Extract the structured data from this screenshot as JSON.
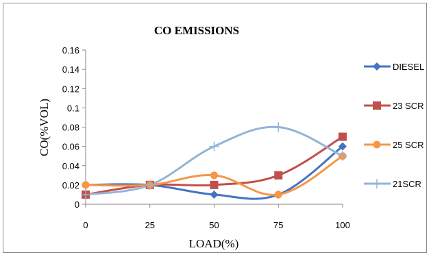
{
  "chart_data": {
    "type": "line",
    "title": "CO EMISSIONS",
    "xlabel": "LOAD(%)",
    "ylabel": "CO(%VOL)",
    "categories": [
      "0",
      "25",
      "50",
      "75",
      "100"
    ],
    "x": [
      0,
      25,
      50,
      75,
      100
    ],
    "ylim": [
      0,
      0.16
    ],
    "yticks": [
      "0",
      "0.02",
      "0.04",
      "0.06",
      "0.08",
      "0.1",
      "0.12",
      "0.14",
      "0.16"
    ],
    "grid": false,
    "legend_position": "right",
    "series": [
      {
        "name": "DIESEL",
        "values": [
          0.02,
          0.02,
          0.01,
          0.01,
          0.06
        ],
        "color": "#4472C4",
        "marker": "diamond"
      },
      {
        "name": "23 SCR",
        "values": [
          0.01,
          0.02,
          0.02,
          0.03,
          0.07
        ],
        "color": "#C0504D",
        "marker": "square"
      },
      {
        "name": "25 SCR",
        "values": [
          0.02,
          0.02,
          0.03,
          0.01,
          0.05
        ],
        "color": "#F79646",
        "marker": "circle"
      },
      {
        "name": "21SCR",
        "values": [
          0.01,
          0.02,
          0.06,
          0.08,
          0.05
        ],
        "color": "#95B3D7",
        "marker": "plus"
      }
    ]
  }
}
